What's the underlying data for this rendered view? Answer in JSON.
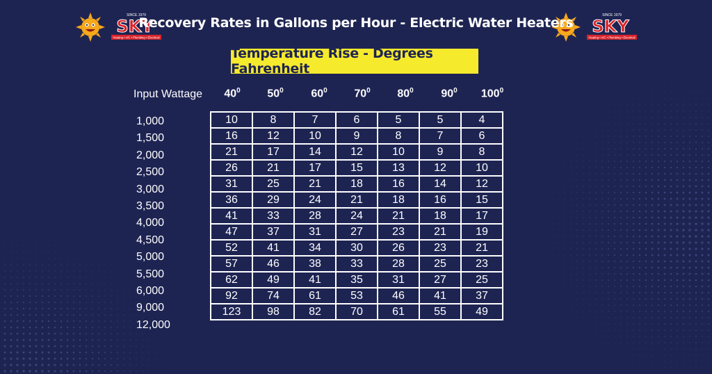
{
  "title": "Recovery Rates in Gallons per Hour - Electric Water Heaters",
  "subtitle": "Temperature Rise - Degrees Fahrenheit",
  "row_header_label": "Input Wattage",
  "logo": {
    "since": "SINCE 1979",
    "brand": "SKY",
    "tagline": "Heating • A/C • Plumbing • Electrical"
  },
  "columns": [
    "40",
    "50",
    "60",
    "70",
    "80",
    "90",
    "100"
  ],
  "degree_mark": "0",
  "rows": [
    {
      "wattage": "1,000",
      "values": [
        "10",
        "8",
        "7",
        "6",
        "5",
        "5",
        "4"
      ]
    },
    {
      "wattage": "1,500",
      "values": [
        "16",
        "12",
        "10",
        "9",
        "8",
        "7",
        "6"
      ]
    },
    {
      "wattage": "2,000",
      "values": [
        "21",
        "17",
        "14",
        "12",
        "10",
        "9",
        "8"
      ]
    },
    {
      "wattage": "2,500",
      "values": [
        "26",
        "21",
        "17",
        "15",
        "13",
        "12",
        "10"
      ]
    },
    {
      "wattage": "3,000",
      "values": [
        "31",
        "25",
        "21",
        "18",
        "16",
        "14",
        "12"
      ]
    },
    {
      "wattage": "3,500",
      "values": [
        "36",
        "29",
        "24",
        "21",
        "18",
        "16",
        "15"
      ]
    },
    {
      "wattage": "4,000",
      "values": [
        "41",
        "33",
        "28",
        "24",
        "21",
        "18",
        "17"
      ]
    },
    {
      "wattage": "4,500",
      "values": [
        "47",
        "37",
        "31",
        "27",
        "23",
        "21",
        "19"
      ]
    },
    {
      "wattage": "5,000",
      "values": [
        "52",
        "41",
        "34",
        "30",
        "26",
        "23",
        "21"
      ]
    },
    {
      "wattage": "5,500",
      "values": [
        "57",
        "46",
        "38",
        "33",
        "28",
        "25",
        "23"
      ]
    },
    {
      "wattage": "6,000",
      "values": [
        "62",
        "49",
        "41",
        "35",
        "31",
        "27",
        "25"
      ]
    },
    {
      "wattage": "9,000",
      "values": [
        "92",
        "74",
        "61",
        "53",
        "46",
        "41",
        "37"
      ]
    },
    {
      "wattage": "12,000",
      "values": [
        "123",
        "98",
        "82",
        "70",
        "61",
        "55",
        "49"
      ]
    }
  ],
  "colors": {
    "background": "#1e2452",
    "highlight": "#f6ea2d",
    "text": "#ffffff",
    "logo_red": "#d8232a"
  }
}
